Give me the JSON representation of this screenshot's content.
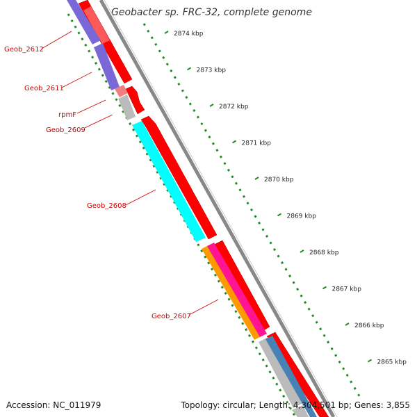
{
  "title": "Geobacter sp. FRC-32, complete genome",
  "footer": {
    "accession": "Accession: NC_011979",
    "summary": "Topology: circular; Length: 4,304,501 bp; Genes: 3,855"
  },
  "ticks": [
    {
      "label": "2874 kbp",
      "pos": 2874
    },
    {
      "label": "2873 kbp",
      "pos": 2873
    },
    {
      "label": "2872 kbp",
      "pos": 2872
    },
    {
      "label": "2871 kbp",
      "pos": 2871
    },
    {
      "label": "2870 kbp",
      "pos": 2870
    },
    {
      "label": "2869 kbp",
      "pos": 2869
    },
    {
      "label": "2868 kbp",
      "pos": 2868
    },
    {
      "label": "2867 kbp",
      "pos": 2867
    },
    {
      "label": "2866 kbp",
      "pos": 2866
    },
    {
      "label": "2865 kbp",
      "pos": 2865
    }
  ],
  "gene_labels": [
    {
      "name": "geob-2612-label",
      "text": "Geob_2612"
    },
    {
      "name": "geob-2611-label",
      "text": "Geob_2611"
    },
    {
      "name": "rpmf-label",
      "text": "rpmF"
    },
    {
      "name": "geob-2609-label",
      "text": "Geob_2609"
    },
    {
      "name": "geob-2608-label",
      "text": "Geob_2608"
    },
    {
      "name": "geob-2607-label",
      "text": "Geob_2607"
    }
  ],
  "colors": {
    "cds": "#ff0000",
    "trna": "#7b68d8",
    "rna_small": "#f08080",
    "misc": "#bbbbbb",
    "cyan_feature": "#00ffff",
    "orange_feature": "#ff9900",
    "magenta_feature": "#ff1493",
    "blue_feature": "#4682b4",
    "backbone": "#888888",
    "gc_marks": "#228b22",
    "label_text": "#cc0000"
  }
}
